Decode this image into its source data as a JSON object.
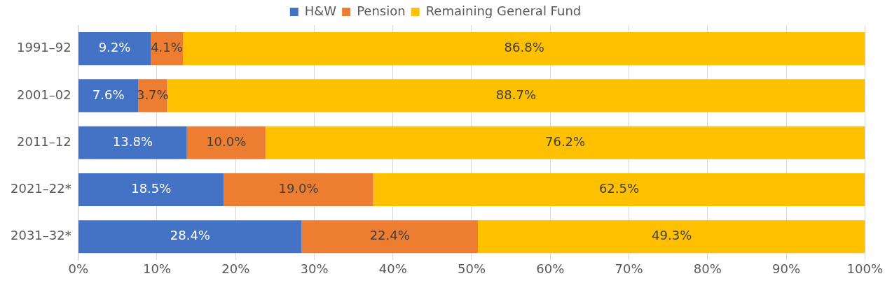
{
  "chart_data": {
    "type": "bar",
    "orientation": "horizontal",
    "stacked": true,
    "categories": [
      "1991–92",
      "2001–02",
      "2011–12",
      "2021–22*",
      "2031–32*"
    ],
    "series": [
      {
        "name": "H&W",
        "color": "#4472c4",
        "values": [
          9.2,
          7.6,
          13.8,
          18.5,
          28.4
        ],
        "value_labels": [
          "9.2%",
          "7.6%",
          "13.8%",
          "18.5%",
          "28.4%"
        ]
      },
      {
        "name": "Pension",
        "color": "#ed7d31",
        "values": [
          4.1,
          3.7,
          10.0,
          19.0,
          22.4
        ],
        "value_labels": [
          "4.1%",
          "3.7%",
          "10.0%",
          "19.0%",
          "22.4%"
        ]
      },
      {
        "name": "Remaining General Fund",
        "color": "#ffc000",
        "values": [
          86.8,
          88.7,
          76.2,
          62.5,
          49.3
        ],
        "value_labels": [
          "86.8%",
          "88.7%",
          "76.2%",
          "62.5%",
          "49.3%"
        ]
      }
    ],
    "xlim": [
      0,
      100
    ],
    "xticks": [
      {
        "value": 0,
        "label": "0%"
      },
      {
        "value": 10,
        "label": "10%"
      },
      {
        "value": 20,
        "label": "20%"
      },
      {
        "value": 30,
        "label": "30%"
      },
      {
        "value": 40,
        "label": "40%"
      },
      {
        "value": 50,
        "label": "50%"
      },
      {
        "value": 60,
        "label": "60%"
      },
      {
        "value": 70,
        "label": "70%"
      },
      {
        "value": 80,
        "label": "80%"
      },
      {
        "value": 90,
        "label": "90%"
      },
      {
        "value": 100,
        "label": "100%"
      }
    ],
    "grid": "x",
    "legend": "top"
  }
}
